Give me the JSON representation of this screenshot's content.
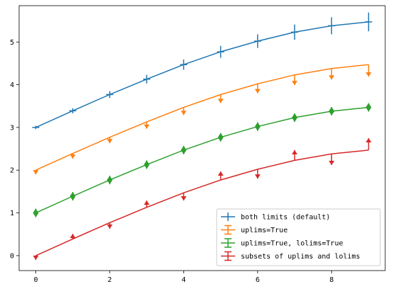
{
  "chart_data": {
    "type": "line",
    "title": "",
    "xlabel": "",
    "ylabel": "",
    "xlim": [
      -0.45,
      9.45
    ],
    "ylim": [
      -0.35,
      5.85
    ],
    "xticks": [
      0,
      2,
      4,
      6,
      8
    ],
    "yticks": [
      0,
      1,
      2,
      3,
      4,
      5
    ],
    "legend_location": "lower right",
    "x": [
      0,
      1,
      2,
      3,
      4,
      5,
      6,
      7,
      8,
      9
    ],
    "series": [
      {
        "name": "both limits (default)",
        "color": "#1f77b4",
        "style": "both",
        "y": [
          3.0,
          3.39,
          3.77,
          4.13,
          4.47,
          4.77,
          5.02,
          5.23,
          5.38,
          5.47
        ],
        "yerr": [
          0.04,
          0.06,
          0.08,
          0.1,
          0.12,
          0.14,
          0.16,
          0.18,
          0.2,
          0.22
        ]
      },
      {
        "name": "uplims=True",
        "color": "#ff7f0e",
        "style": "uplims",
        "y": [
          2.0,
          2.39,
          2.77,
          3.13,
          3.47,
          3.77,
          4.02,
          4.23,
          4.38,
          4.47
        ],
        "yerr": [
          0.1,
          0.12,
          0.14,
          0.16,
          0.18,
          0.2,
          0.22,
          0.24,
          0.26,
          0.28
        ]
      },
      {
        "name": "uplims=True, lolims=True",
        "color": "#2ca02c",
        "style": "updown",
        "y": [
          1.0,
          1.39,
          1.77,
          2.13,
          2.47,
          2.77,
          3.02,
          3.23,
          3.38,
          3.47
        ],
        "yerr": [
          0.1,
          0.1,
          0.1,
          0.1,
          0.1,
          0.1,
          0.1,
          0.1,
          0.1,
          0.1
        ]
      },
      {
        "name": "subsets of uplims and lolims",
        "color": "#d62728",
        "style": "subsets",
        "y": [
          0.0,
          0.39,
          0.77,
          1.13,
          1.47,
          1.77,
          2.02,
          2.23,
          2.38,
          2.47
        ],
        "yerr": [
          0.1,
          0.12,
          0.14,
          0.16,
          0.18,
          0.2,
          0.22,
          0.24,
          0.26,
          0.28
        ],
        "uplims_x": [
          2,
          4,
          6,
          8
        ],
        "lolims_x": [
          1,
          3,
          5,
          7,
          9
        ]
      }
    ]
  }
}
